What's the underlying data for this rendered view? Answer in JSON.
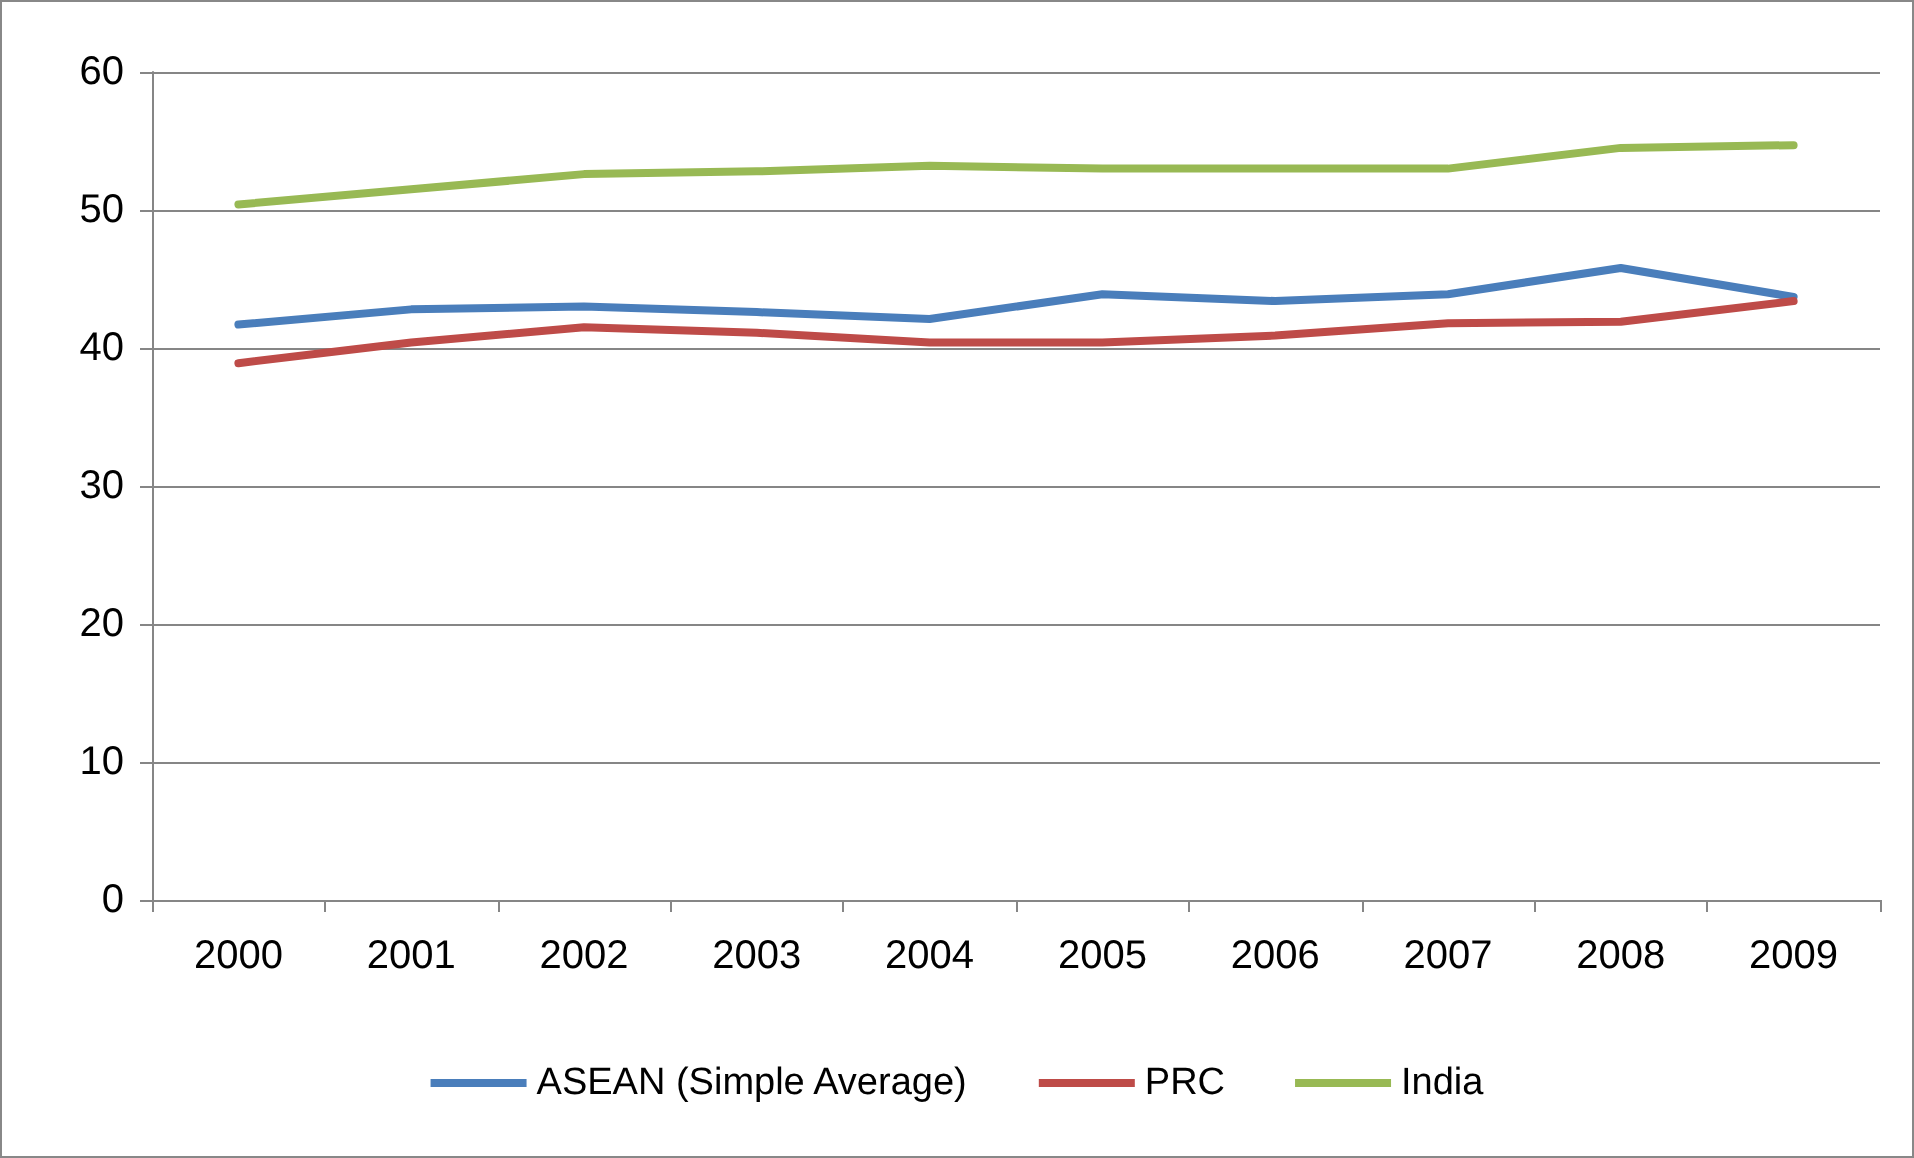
{
  "chart_data": {
    "type": "line",
    "categories": [
      "2000",
      "2001",
      "2002",
      "2003",
      "2004",
      "2005",
      "2006",
      "2007",
      "2008",
      "2009"
    ],
    "series": [
      {
        "name": "ASEAN (Simple Average)",
        "color": "#4a7ebb",
        "values": [
          41.7,
          42.8,
          43.0,
          42.6,
          42.1,
          43.9,
          43.4,
          43.9,
          45.8,
          43.7
        ]
      },
      {
        "name": "PRC",
        "color": "#be4b48",
        "values": [
          38.9,
          40.4,
          41.5,
          41.1,
          40.4,
          40.4,
          40.9,
          41.8,
          41.9,
          43.4
        ]
      },
      {
        "name": "India",
        "color": "#98b954",
        "values": [
          50.4,
          51.5,
          52.6,
          52.8,
          53.2,
          53.0,
          53.0,
          53.0,
          54.5,
          54.7
        ]
      }
    ],
    "ylim": [
      0,
      60
    ],
    "yticks": [
      0,
      10,
      20,
      30,
      40,
      50,
      60
    ],
    "grid": "y",
    "legend": "bottom",
    "marker": "none",
    "line_style": "solid"
  }
}
